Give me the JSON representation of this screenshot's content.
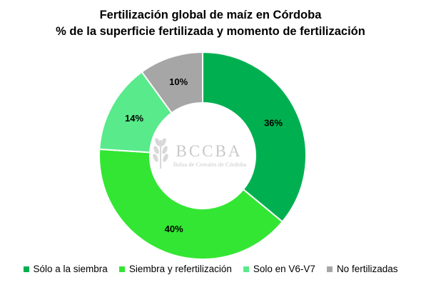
{
  "title_line1": "Fertilización global de maíz en Córdoba",
  "title_line2": "% de la superficie fertilizada y momento de fertilización",
  "watermark": {
    "logo_text": "BCCBA",
    "subtitle": "Bolsa de Cereales de Córdoba"
  },
  "colors": {
    "Sólo a la siembra": "#00B050",
    "Siembra y refertilización": "#33E633",
    "Solo en V6-V7": "#59EA8B",
    "No fertilizadas": "#A6A6A6"
  },
  "chart_data": {
    "type": "pie",
    "variant": "donut",
    "title": "Fertilización global de maíz en Córdoba",
    "subtitle": "% de la superficie fertilizada y momento de fertilización",
    "categories": [
      "Sólo a la siembra",
      "Siembra y refertilización",
      "Solo en V6-V7",
      "No fertilizadas"
    ],
    "values": [
      36,
      40,
      14,
      10
    ],
    "data_labels": [
      "36%",
      "40%",
      "14%",
      "10%"
    ],
    "legend_position": "bottom",
    "start_angle": "12 o'clock",
    "direction": "clockwise"
  }
}
